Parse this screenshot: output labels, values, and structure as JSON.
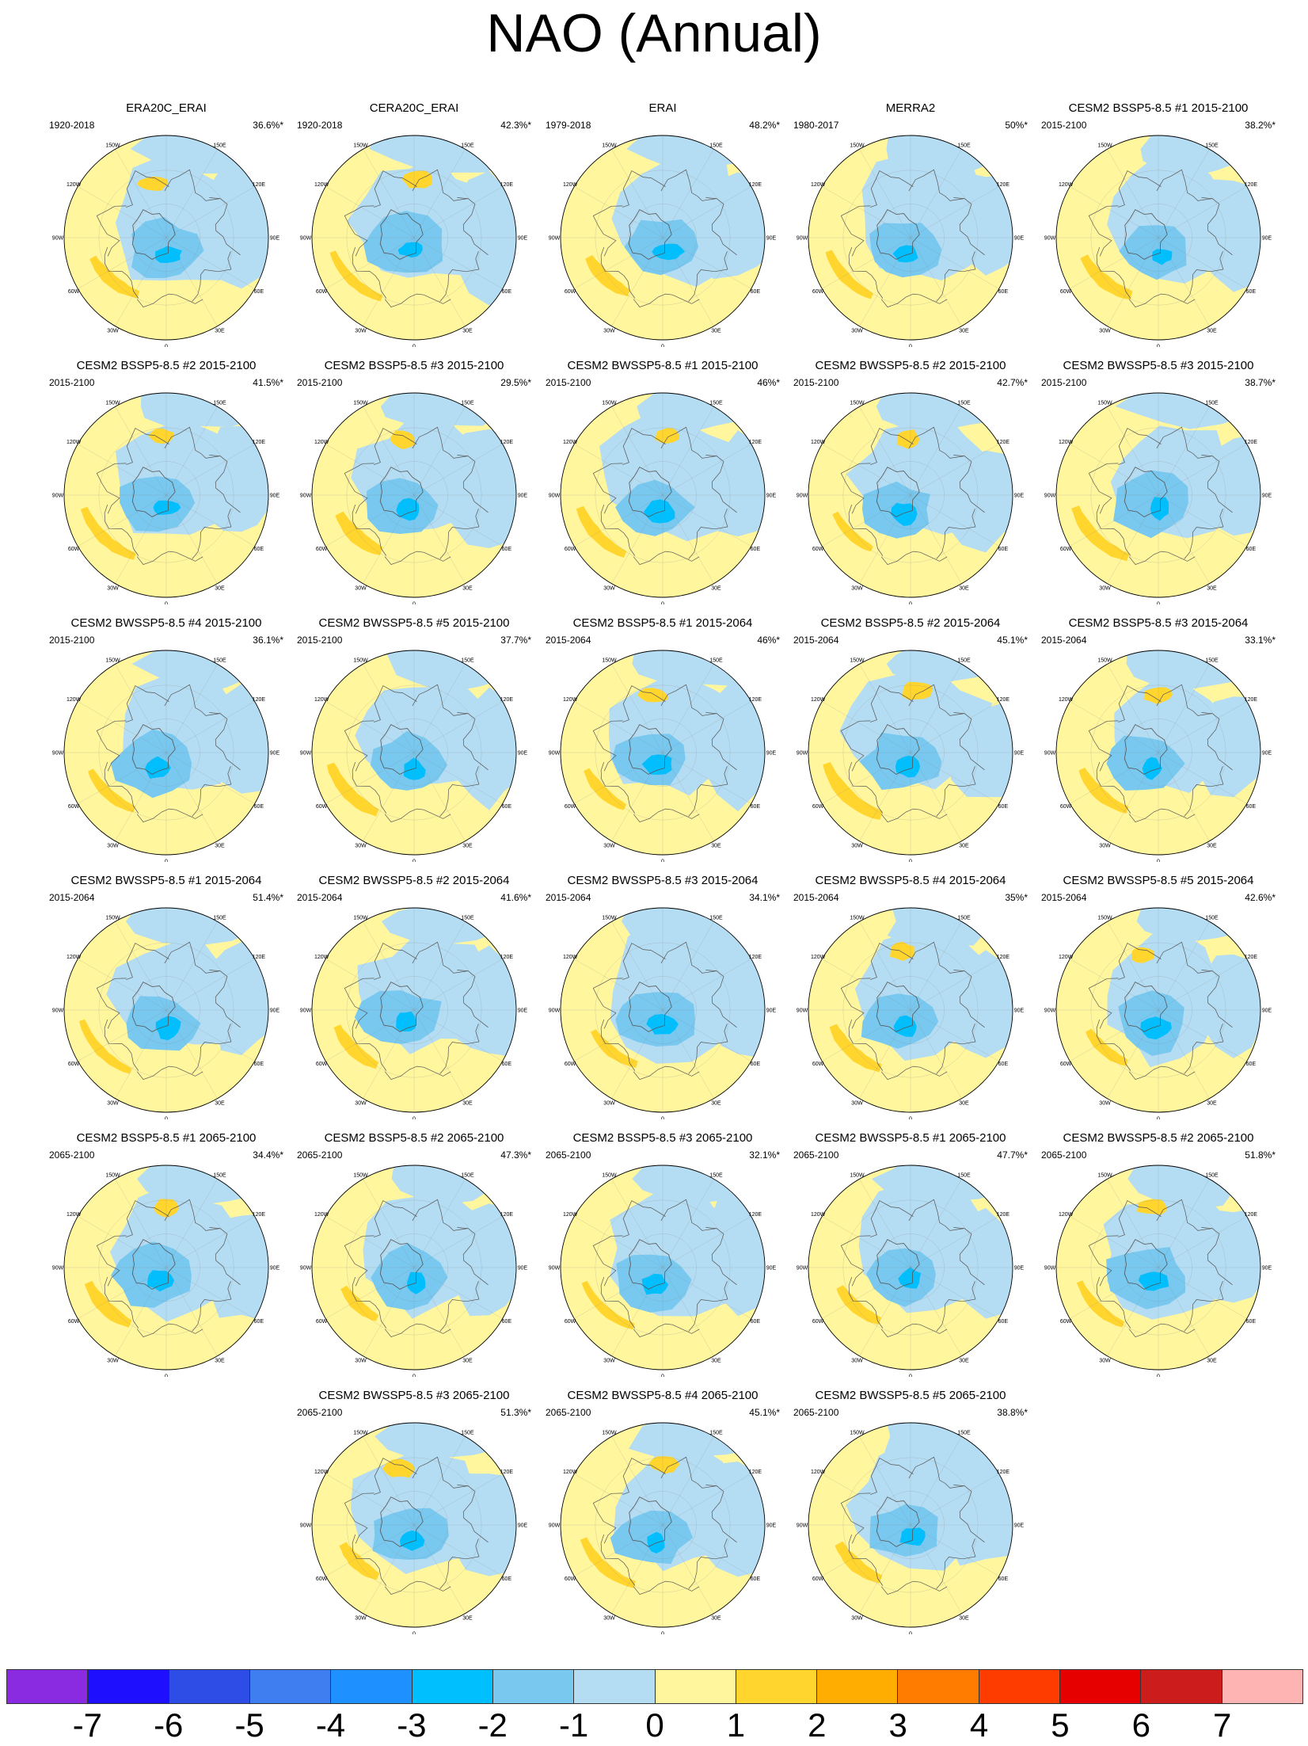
{
  "title": "NAO (Annual)",
  "lon_labels": [
    "180",
    "150E",
    "120E",
    "90E",
    "60E",
    "30E",
    "0",
    "30W",
    "60W",
    "90W",
    "120W",
    "150W"
  ],
  "colorbar": {
    "colors": [
      "#8a2be2",
      "#1e10ff",
      "#2e4ce6",
      "#3f7ef0",
      "#1e90ff",
      "#00bfff",
      "#78c8f0",
      "#b4dcf2",
      "#fff69e",
      "#ffd52e",
      "#ffad00",
      "#ff7c00",
      "#ff3c00",
      "#e60000",
      "#cc1c1c",
      "#ffb4b4"
    ],
    "tick_labels": [
      "-7",
      "-6",
      "-5",
      "-4",
      "-3",
      "-2",
      "-1",
      "0",
      "1",
      "2",
      "3",
      "4",
      "5",
      "6",
      "7"
    ]
  },
  "chart_data": [
    {
      "type": "heatmap",
      "title": "ERA20C_ERAI",
      "period": "1920-2018",
      "variance_explained": "36.6%*"
    },
    {
      "type": "heatmap",
      "title": "CERA20C_ERAI",
      "period": "1920-2018",
      "variance_explained": "42.3%*"
    },
    {
      "type": "heatmap",
      "title": "ERAI",
      "period": "1979-2018",
      "variance_explained": "48.2%*"
    },
    {
      "type": "heatmap",
      "title": "MERRA2",
      "period": "1980-2017",
      "variance_explained": "50%*"
    },
    {
      "type": "heatmap",
      "title": "CESM2 BSSP5-8.5 #1 2015-2100",
      "period": "2015-2100",
      "variance_explained": "38.2%*"
    },
    {
      "type": "heatmap",
      "title": "CESM2 BSSP5-8.5 #2 2015-2100",
      "period": "2015-2100",
      "variance_explained": "41.5%*"
    },
    {
      "type": "heatmap",
      "title": "CESM2 BSSP5-8.5 #3 2015-2100",
      "period": "2015-2100",
      "variance_explained": "29.5%*"
    },
    {
      "type": "heatmap",
      "title": "CESM2 BWSSP5-8.5 #1 2015-2100",
      "period": "2015-2100",
      "variance_explained": "46%*"
    },
    {
      "type": "heatmap",
      "title": "CESM2 BWSSP5-8.5 #2 2015-2100",
      "period": "2015-2100",
      "variance_explained": "42.7%*"
    },
    {
      "type": "heatmap",
      "title": "CESM2 BWSSP5-8.5 #3 2015-2100",
      "period": "2015-2100",
      "variance_explained": "38.7%*"
    },
    {
      "type": "heatmap",
      "title": "CESM2 BWSSP5-8.5 #4 2015-2100",
      "period": "2015-2100",
      "variance_explained": "36.1%*"
    },
    {
      "type": "heatmap",
      "title": "CESM2 BWSSP5-8.5 #5 2015-2100",
      "period": "2015-2100",
      "variance_explained": "37.7%*"
    },
    {
      "type": "heatmap",
      "title": "CESM2 BSSP5-8.5 #1 2015-2064",
      "period": "2015-2064",
      "variance_explained": "46%*"
    },
    {
      "type": "heatmap",
      "title": "CESM2 BSSP5-8.5 #2 2015-2064",
      "period": "2015-2064",
      "variance_explained": "45.1%*"
    },
    {
      "type": "heatmap",
      "title": "CESM2 BSSP5-8.5 #3 2015-2064",
      "period": "2015-2064",
      "variance_explained": "33.1%*"
    },
    {
      "type": "heatmap",
      "title": "CESM2 BWSSP5-8.5 #1 2015-2064",
      "period": "2015-2064",
      "variance_explained": "51.4%*"
    },
    {
      "type": "heatmap",
      "title": "CESM2 BWSSP5-8.5 #2 2015-2064",
      "period": "2015-2064",
      "variance_explained": "41.6%*"
    },
    {
      "type": "heatmap",
      "title": "CESM2 BWSSP5-8.5 #3 2015-2064",
      "period": "2015-2064",
      "variance_explained": "34.1%*"
    },
    {
      "type": "heatmap",
      "title": "CESM2 BWSSP5-8.5 #4 2015-2064",
      "period": "2015-2064",
      "variance_explained": "35%*"
    },
    {
      "type": "heatmap",
      "title": "CESM2 BWSSP5-8.5 #5 2015-2064",
      "period": "2015-2064",
      "variance_explained": "42.6%*"
    },
    {
      "type": "heatmap",
      "title": "CESM2 BSSP5-8.5 #1 2065-2100",
      "period": "2065-2100",
      "variance_explained": "34.4%*"
    },
    {
      "type": "heatmap",
      "title": "CESM2 BSSP5-8.5 #2 2065-2100",
      "period": "2065-2100",
      "variance_explained": "47.3%*"
    },
    {
      "type": "heatmap",
      "title": "CESM2 BSSP5-8.5 #3 2065-2100",
      "period": "2065-2100",
      "variance_explained": "32.1%*"
    },
    {
      "type": "heatmap",
      "title": "CESM2 BWSSP5-8.5 #1 2065-2100",
      "period": "2065-2100",
      "variance_explained": "47.7%*"
    },
    {
      "type": "heatmap",
      "title": "CESM2 BWSSP5-8.5 #2 2065-2100",
      "period": "2065-2100",
      "variance_explained": "51.8%*"
    },
    {
      "type": "heatmap",
      "title": "CESM2 BWSSP5-8.5 #3 2065-2100",
      "period": "2065-2100",
      "variance_explained": "51.3%*"
    },
    {
      "type": "heatmap",
      "title": "CESM2 BWSSP5-8.5 #4 2065-2100",
      "period": "2065-2100",
      "variance_explained": "45.1%*"
    },
    {
      "type": "heatmap",
      "title": "CESM2 BWSSP5-8.5 #5 2065-2100",
      "period": "2065-2100",
      "variance_explained": "38.8%*"
    }
  ]
}
